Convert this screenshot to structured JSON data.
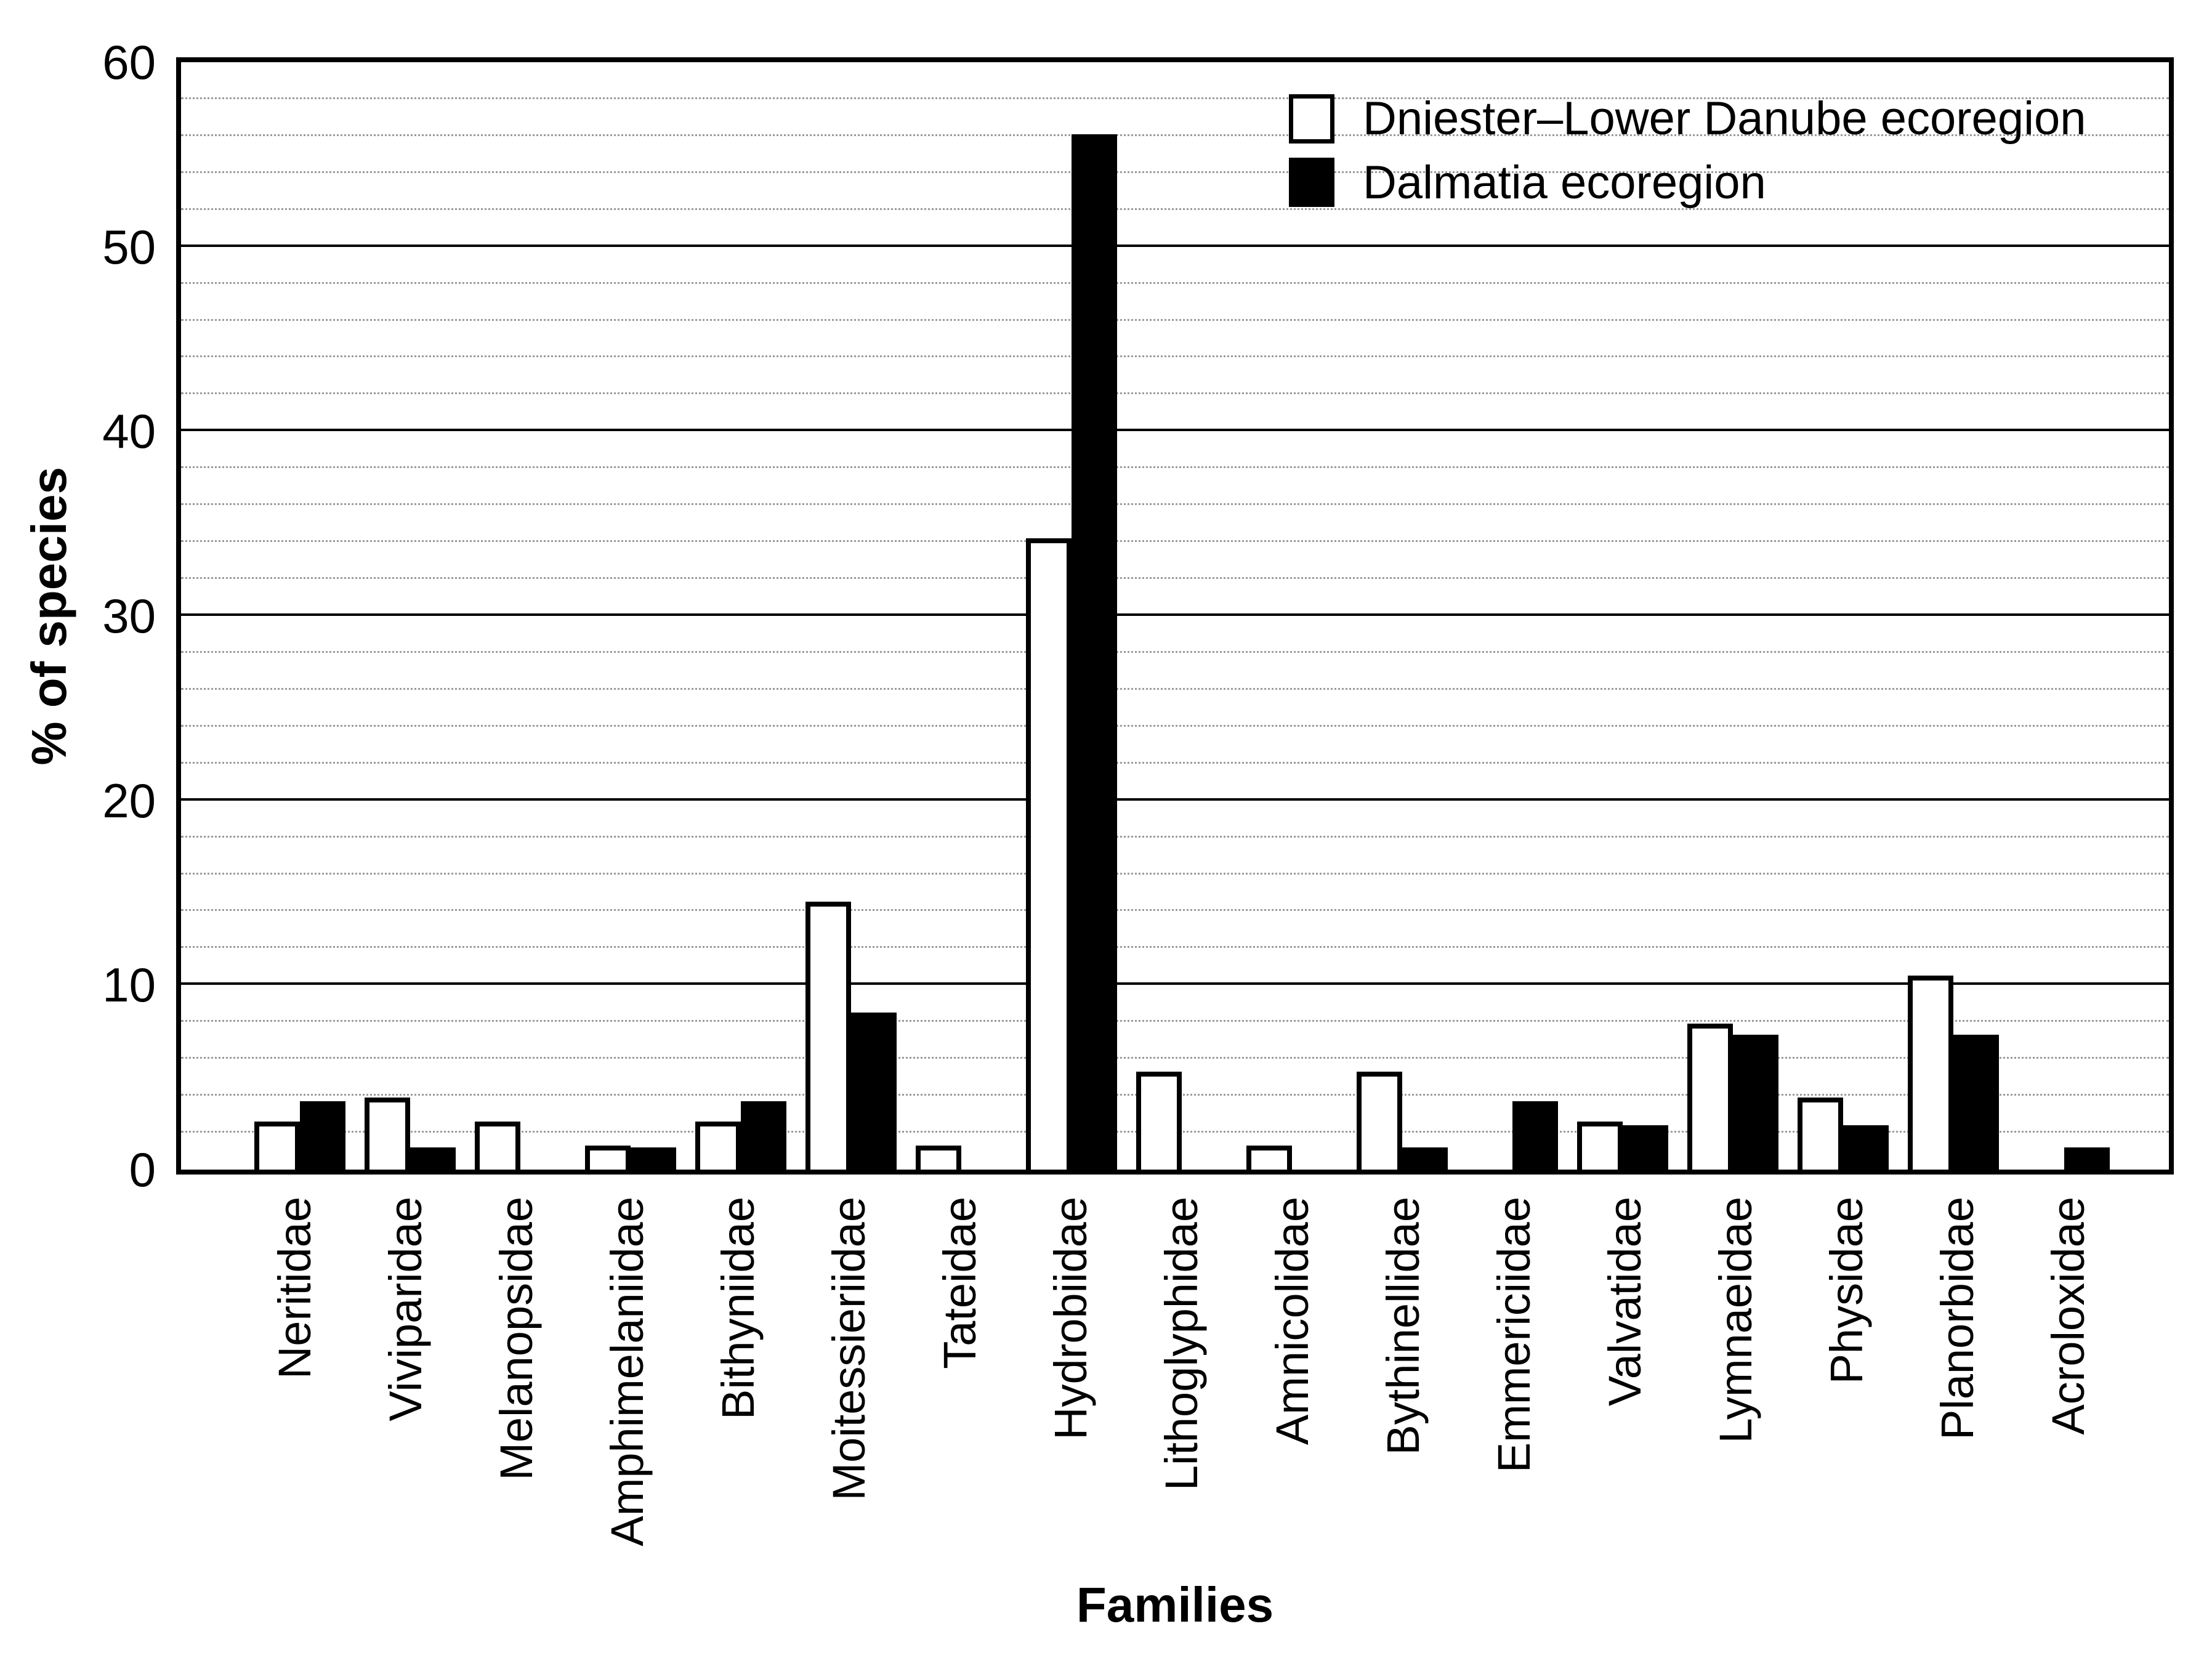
{
  "figure": {
    "background": "#ffffff",
    "axis_color": "#000000",
    "minor_grid_color": "#9a9a9a"
  },
  "legend": {
    "items": [
      {
        "label": "Dniester–Lower Danube ecoregion",
        "fill": "#ffffff",
        "swatch": "white-filled-square"
      },
      {
        "label": "Dalmatia ecoregion",
        "fill": "#000000",
        "swatch": "black-filled-square"
      }
    ]
  },
  "chart_data": {
    "type": "bar",
    "title": "",
    "xlabel": "Families",
    "ylabel": "% of species",
    "ylim": [
      0,
      60
    ],
    "ytick_step": 10,
    "yticks": [
      0,
      10,
      20,
      30,
      40,
      50,
      60
    ],
    "minor_grid_step": 2,
    "grid": "horizontal: solid major lines every 10, dotted minor lines every 2",
    "legend_position": "top-right inside plot",
    "bar_outline": "#000000",
    "categories": [
      "Neritidae",
      "Viviparidae",
      "Melanopsidae",
      "Amphimelaniidae",
      "Bithyniidae",
      "Moitessieriidae",
      "Tateidae",
      "Hydrobiidae",
      "Lithoglyphidae",
      "Amnicolidae",
      "Bythinellidae",
      "Emmericiidae",
      "Valvatidae",
      "Lymnaeidae",
      "Physidae",
      "Planorbidae",
      "Acroloxidae"
    ],
    "series": [
      {
        "name": "Dniester–Lower Danube ecoregion",
        "fill": "#ffffff",
        "values": [
          2.6,
          3.9,
          2.6,
          1.3,
          2.6,
          14.5,
          1.3,
          34.2,
          5.3,
          1.3,
          5.3,
          0,
          2.6,
          7.9,
          3.9,
          10.5,
          0
        ]
      },
      {
        "name": "Dalmatia ecoregion",
        "fill": "#000000",
        "values": [
          3.7,
          1.2,
          0,
          1.2,
          3.7,
          8.5,
          0,
          56.1,
          0,
          0,
          1.2,
          3.7,
          2.4,
          7.3,
          2.4,
          7.3,
          1.2
        ]
      }
    ]
  }
}
